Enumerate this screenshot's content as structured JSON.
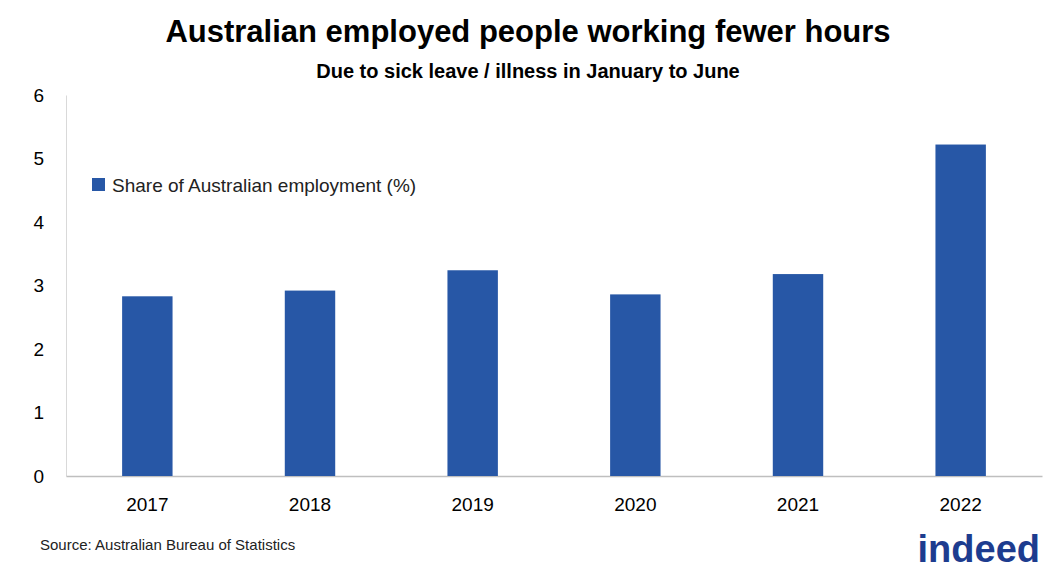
{
  "chart_data": {
    "type": "bar",
    "title": "Australian employed people working fewer hours",
    "subtitle": "Due to sick leave / illness in January to June",
    "source": "Source: Australian Bureau of Statistics",
    "logo": "indeed",
    "categories": [
      "2017",
      "2018",
      "2019",
      "2020",
      "2021",
      "2022"
    ],
    "series": [
      {
        "name": "Share of Australian employment (%)",
        "color": "#2757a6",
        "values": [
          2.83,
          2.92,
          3.24,
          2.86,
          3.18,
          5.22
        ]
      }
    ],
    "ylim": [
      0,
      6
    ],
    "yticks": [
      0,
      1,
      2,
      3,
      4,
      5,
      6
    ],
    "grid": false,
    "legend": "top-left"
  }
}
